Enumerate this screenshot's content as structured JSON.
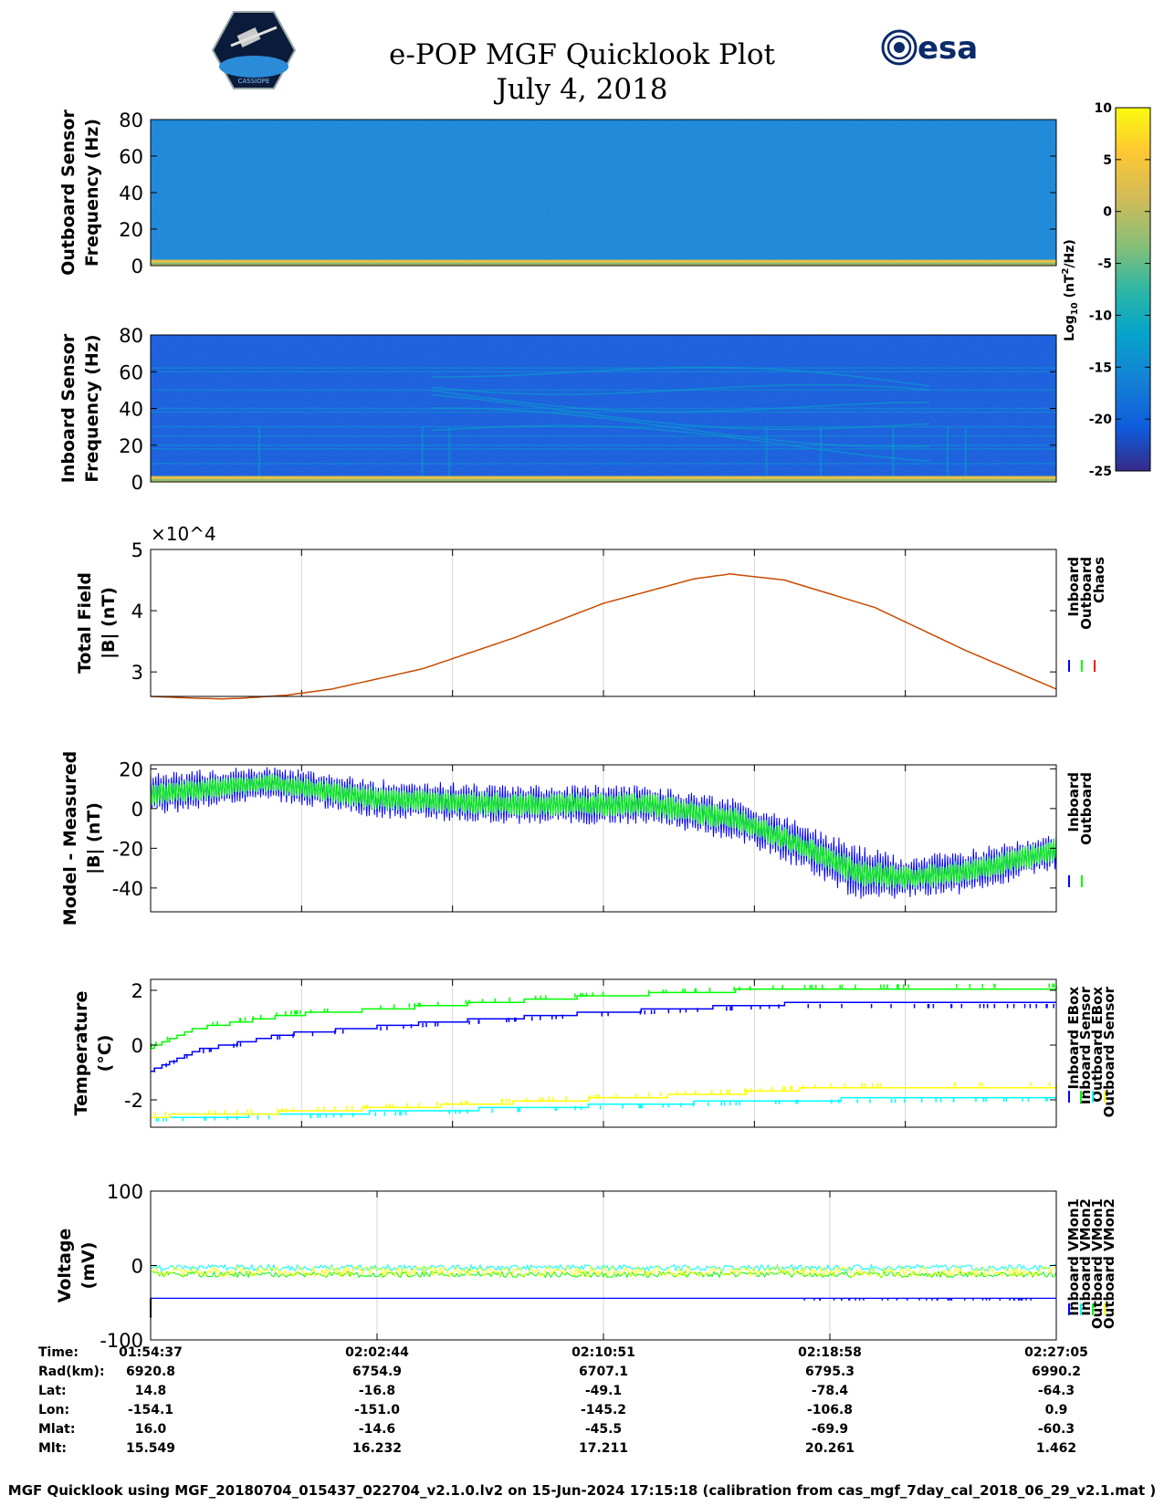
{
  "header": {
    "title": "e-POP MGF Quicklook Plot",
    "date": "July 4, 2018",
    "left_logo": "cassiope-mission-patch",
    "right_logo": "esa",
    "right_logo_text": "esa"
  },
  "colorbar": {
    "label": "Log10 (nT^2/Hz)",
    "ticks": [
      10,
      5,
      0,
      -5,
      -10,
      -15,
      -20,
      -25
    ],
    "range": [
      -25,
      10
    ],
    "colormap": "parula"
  },
  "chart_data": [
    {
      "type": "heatmap",
      "ylabel": [
        "Outboard Sensor",
        "Frequency (Hz)"
      ],
      "yticks": [
        80,
        60,
        40,
        20,
        0
      ],
      "ylim": [
        0,
        80
      ],
      "background_level": -16,
      "low_frequency_band_level": 3
    },
    {
      "type": "heatmap",
      "ylabel": [
        "Inboard Sensor",
        "Frequency (Hz)"
      ],
      "yticks": [
        80,
        60,
        40,
        20,
        0
      ],
      "ylim": [
        0,
        80
      ],
      "background_level": -21,
      "low_frequency_band_level": 3
    },
    {
      "type": "line",
      "ylabel": [
        "Total Field",
        "|B| (nT)"
      ],
      "yticks": [
        5,
        4,
        3
      ],
      "ylim": [
        2.6,
        5
      ],
      "exponent": "×10^4",
      "legend": [
        "Inboard",
        "Outboard",
        "Chaos"
      ],
      "legend_colors": [
        "#0000ff",
        "#00ff00",
        "#ff0000"
      ],
      "x": [
        0,
        0.05,
        0.08,
        0.1,
        0.15,
        0.2,
        0.3,
        0.4,
        0.5,
        0.6,
        0.64,
        0.7,
        0.8,
        0.9,
        1.0
      ],
      "y": [
        2.6,
        2.57,
        2.56,
        2.57,
        2.62,
        2.72,
        3.05,
        3.55,
        4.12,
        4.52,
        4.6,
        4.5,
        4.05,
        3.35,
        2.72
      ],
      "line_color": "#c84a00"
    },
    {
      "type": "line",
      "ylabel": [
        "Model - Measured",
        "|B| (nT)"
      ],
      "yticks": [
        20,
        0,
        -20,
        -40
      ],
      "ylim": [
        -52,
        22
      ],
      "legend": [
        "Inboard",
        "Outboard"
      ],
      "legend_colors": [
        "#0000ff",
        "#00ff00"
      ],
      "series": [
        {
          "name": "Inboard",
          "color": "#0000ff",
          "x": [
            0,
            0.13,
            0.25,
            0.4,
            0.55,
            0.65,
            0.72,
            0.78,
            0.83,
            0.9,
            1.0
          ],
          "center": [
            7,
            13,
            5,
            2,
            2,
            -6,
            -19,
            -32,
            -35,
            -32,
            -21
          ],
          "amplitude": [
            11,
            9,
            10,
            10,
            10,
            11,
            12,
            14,
            11,
            11,
            10
          ]
        },
        {
          "name": "Outboard",
          "color": "#00ff00",
          "x": [
            0,
            0.13,
            0.25,
            0.4,
            0.55,
            0.65,
            0.72,
            0.78,
            0.83,
            0.9,
            1.0
          ],
          "center": [
            7,
            13,
            5,
            2,
            2,
            -6,
            -19,
            -32,
            -35,
            -32,
            -21
          ],
          "amplitude": [
            6,
            5,
            6,
            6,
            6,
            6,
            6,
            7,
            6,
            6,
            6
          ]
        }
      ]
    },
    {
      "type": "line",
      "ylabel": [
        "Temperature",
        "(°C)"
      ],
      "yticks": [
        2,
        0,
        -2
      ],
      "ylim": [
        -3,
        2.4
      ],
      "legend": [
        "Inboard EBox",
        "Inboard Sensor",
        "Outboard EBox",
        "Outboard Sensor"
      ],
      "legend_colors": [
        "#0000ff",
        "#00ff00",
        "#00ffff",
        "#ffff00"
      ],
      "series": [
        {
          "name": "Inboard EBox",
          "color": "#00ff00",
          "x": [
            0,
            0.05,
            0.15,
            0.3,
            0.5,
            0.7,
            1.0
          ],
          "y": [
            -0.1,
            0.6,
            1.1,
            1.4,
            1.8,
            2.05,
            2.1
          ]
        },
        {
          "name": "Inboard Sensor",
          "color": "#0000ff",
          "x": [
            0,
            0.05,
            0.15,
            0.3,
            0.5,
            0.7,
            1.0
          ],
          "y": [
            -0.9,
            -0.2,
            0.4,
            0.8,
            1.2,
            1.5,
            1.5
          ]
        },
        {
          "name": "Outboard EBox",
          "color": "#00ffff",
          "x": [
            0,
            0.15,
            0.3,
            0.5,
            0.7,
            1.0
          ],
          "y": [
            -2.65,
            -2.55,
            -2.4,
            -2.2,
            -2.0,
            -1.9
          ]
        },
        {
          "name": "Outboard Sensor",
          "color": "#ffff00",
          "x": [
            0,
            0.15,
            0.3,
            0.5,
            0.65,
            0.75,
            1.0
          ],
          "y": [
            -2.6,
            -2.45,
            -2.25,
            -1.95,
            -1.75,
            -1.55,
            -1.5
          ]
        }
      ]
    },
    {
      "type": "line",
      "ylabel": [
        "Voltage",
        "(mV)"
      ],
      "yticks": [
        100,
        0,
        -100
      ],
      "ylim": [
        -100,
        100
      ],
      "legend": [
        "Inboard VMon1",
        "Inboard VMon2",
        "Outboard VMon1",
        "Outboard VMon2"
      ],
      "legend_colors": [
        "#0000ff",
        "#00ffff",
        "#00ff00",
        "#ffff00"
      ],
      "series": [
        {
          "name": "Inboard VMon1",
          "color": "#0000ff",
          "level": -44
        },
        {
          "name": "Inboard VMon2",
          "color": "#00ffff",
          "level": -3
        },
        {
          "name": "Outboard VMon1",
          "color": "#00ff00",
          "level": -12
        },
        {
          "name": "Outboard VMon2",
          "color": "#ffff00",
          "level": -8
        }
      ]
    }
  ],
  "orbit_table": {
    "labels": [
      "Time:",
      "Rad(km):",
      "Lat:",
      "Lon:",
      "Mlat:",
      "Mlt:"
    ],
    "columns": [
      [
        "01:54:37",
        "6920.8",
        "14.8",
        "-154.1",
        "16.0",
        "15.549"
      ],
      [
        "02:02:44",
        "6754.9",
        "-16.8",
        "-151.0",
        "-14.6",
        "16.232"
      ],
      [
        "02:10:51",
        "6707.1",
        "-49.1",
        "-145.2",
        "-45.5",
        "17.211"
      ],
      [
        "02:18:58",
        "6795.3",
        "-78.4",
        "-106.8",
        "-69.9",
        "20.261"
      ],
      [
        "02:27:05",
        "6990.2",
        "-64.3",
        "0.9",
        "-60.3",
        "1.462"
      ]
    ]
  },
  "footer": "MGF Quicklook using MGF_20180704_015437_022704_v2.1.0.lv2 on 15-Jun-2024 17:15:18 (calibration from cas_mgf_7day_cal_2018_06_29_v2.1.mat )"
}
